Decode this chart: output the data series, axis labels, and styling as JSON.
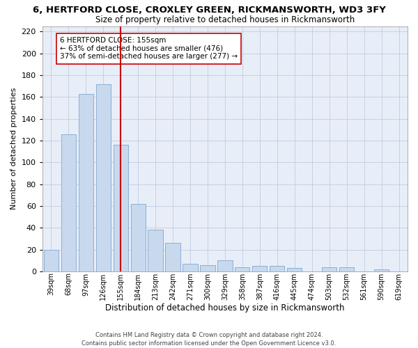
{
  "title": "6, HERTFORD CLOSE, CROXLEY GREEN, RICKMANSWORTH, WD3 3FY",
  "subtitle": "Size of property relative to detached houses in Rickmansworth",
  "xlabel": "Distribution of detached houses by size in Rickmansworth",
  "ylabel": "Number of detached properties",
  "bar_color": "#c8d9ee",
  "bar_edge_color": "#8aafd4",
  "grid_color": "#c0cce0",
  "categories": [
    "39sqm",
    "68sqm",
    "97sqm",
    "126sqm",
    "155sqm",
    "184sqm",
    "213sqm",
    "242sqm",
    "271sqm",
    "300sqm",
    "329sqm",
    "358sqm",
    "387sqm",
    "416sqm",
    "445sqm",
    "474sqm",
    "503sqm",
    "532sqm",
    "561sqm",
    "590sqm",
    "619sqm"
  ],
  "values": [
    20,
    126,
    163,
    172,
    116,
    62,
    38,
    26,
    7,
    6,
    10,
    4,
    5,
    5,
    3,
    0,
    4,
    4,
    0,
    2,
    0
  ],
  "vline_index": 4,
  "vline_color": "#cc0000",
  "annotation_text": "6 HERTFORD CLOSE: 155sqm\n← 63% of detached houses are smaller (476)\n37% of semi-detached houses are larger (277) →",
  "annotation_box_color": "white",
  "annotation_box_edge": "#cc0000",
  "footer": "Contains HM Land Registry data © Crown copyright and database right 2024.\nContains public sector information licensed under the Open Government Licence v3.0.",
  "ylim": [
    0,
    225
  ],
  "yticks": [
    0,
    20,
    40,
    60,
    80,
    100,
    120,
    140,
    160,
    180,
    200,
    220
  ],
  "bg_color": "#e8eef8"
}
